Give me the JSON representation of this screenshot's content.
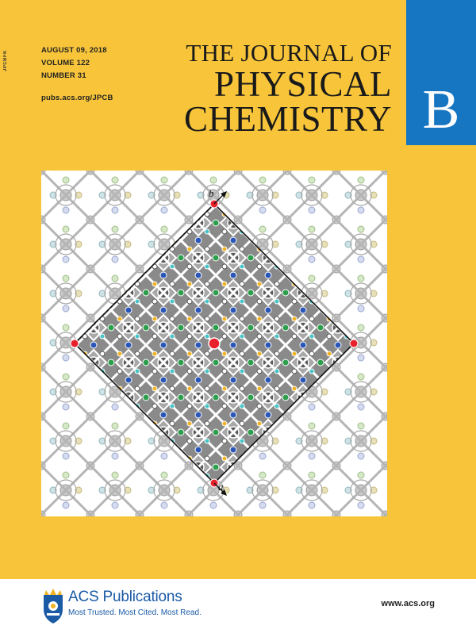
{
  "spine_code": "JPCBFK",
  "issue": {
    "date": "AUGUST 09, 2018",
    "volume": "VOLUME 122",
    "number": "NUMBER 31",
    "url": "pubs.acs.org/JPCB"
  },
  "journal": {
    "line1": "THE JOURNAL OF",
    "line2": "PHYSICAL",
    "line3": "CHEMISTRY",
    "section": "B"
  },
  "artwork": {
    "axis_b": "b",
    "axis_a": "a"
  },
  "publisher": {
    "name": "ACS Publications",
    "tagline": "Most Trusted. Most Cited. Most Read.",
    "url": "www.acs.org"
  },
  "colors": {
    "cover_yellow": "#f8c53a",
    "section_blue": "#1776c2",
    "acs_blue": "#1b5aa5"
  }
}
